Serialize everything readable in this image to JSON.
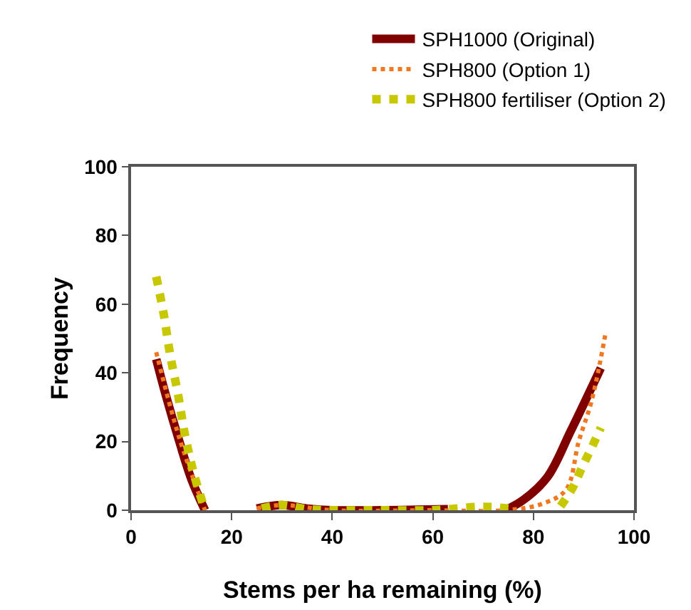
{
  "chart_data": {
    "type": "line",
    "xlabel": "Stems per ha remaining (%)",
    "ylabel": "Frequency",
    "xlim": [
      0,
      100
    ],
    "xticks": [
      0,
      20,
      40,
      60,
      80,
      100
    ],
    "ylim": [
      0,
      100
    ],
    "yticks": [
      0,
      20,
      40,
      60,
      80,
      100
    ],
    "grid": false,
    "legend": "top right",
    "marker": "none",
    "series": [
      {
        "name": "SPH1000 (Original)",
        "color": "#800000",
        "line_style": "solid",
        "x": [
          5,
          7,
          9.6,
          12,
          14.7,
          20,
          25,
          30,
          35,
          40,
          50,
          63,
          68,
          74.4,
          78,
          82.8,
          87.4,
          93.4
        ],
        "values": [
          44,
          33,
          20,
          9,
          0,
          null,
          0.5,
          1.5,
          0.5,
          0,
          0,
          0.3,
          null,
          0,
          3,
          9.7,
          23,
          41.4
        ]
      },
      {
        "name": "SPH800 (Option 1)",
        "color": "#f07820",
        "line_style": "dotted",
        "x": [
          5,
          9.6,
          14.7,
          20,
          25,
          30,
          40,
          60,
          74.5,
          82,
          86.5,
          89,
          91.6,
          94.4
        ],
        "values": [
          46,
          21,
          0,
          null,
          0.5,
          1.5,
          0,
          0,
          0,
          2,
          6,
          20,
          32,
          52
        ]
      },
      {
        "name": "SPH800 fertiliser (Option 2)",
        "color": "#c8c800",
        "line_style": "dotted",
        "x": [
          5,
          6.5,
          7.8,
          9.3,
          10.7,
          12.6,
          14.7,
          20,
          26,
          30,
          35,
          40,
          50,
          60,
          70,
          75,
          80,
          85.4,
          87.9,
          89.7,
          91.6,
          93.4
        ],
        "values": [
          68,
          57,
          45,
          34,
          22,
          10,
          0,
          null,
          0.5,
          1.5,
          0.3,
          0,
          0,
          0,
          1,
          0.5,
          null,
          1.2,
          6.8,
          12.6,
          18.3,
          24
        ]
      }
    ]
  }
}
